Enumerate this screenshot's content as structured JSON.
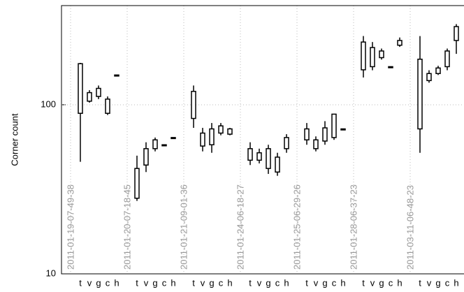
{
  "chart_data": {
    "type": "box",
    "ylabel": "Corner count",
    "log_y": true,
    "grid": true,
    "color": "#000000",
    "ylim": [
      10,
      386
    ],
    "yticks": [
      10,
      100
    ],
    "groups": [
      "2011-01-19-07-49-38",
      "2011-01-20-07-18-45",
      "2011-01-21-09-01-36",
      "2011-01-24-06-18-27",
      "2011-01-25-06-29-26",
      "2011-01-28-06-37-23",
      "2011-03-11-06-48-23"
    ],
    "categories": [
      "t",
      "v",
      "g",
      "c",
      "h",
      "t",
      "v",
      "g",
      "c",
      "h",
      "t",
      "v",
      "g",
      "c",
      "h",
      "t",
      "v",
      "g",
      "c",
      "h",
      "t",
      "v",
      "g",
      "c",
      "h",
      "t",
      "v",
      "g",
      "c",
      "h",
      "t",
      "v",
      "g",
      "c",
      "h"
    ],
    "values": [
      [
        46,
        89,
        175,
        177
      ],
      [
        103,
        105,
        118,
        122
      ],
      [
        108,
        112,
        125,
        130
      ],
      [
        87,
        89,
        108,
        112
      ],
      [
        150,
        150,
        150,
        150
      ],
      [
        27,
        28,
        42,
        50
      ],
      [
        40,
        44,
        55,
        60
      ],
      [
        53,
        55,
        62,
        64
      ],
      [
        58,
        58,
        58,
        58
      ],
      [
        64,
        64,
        64,
        64
      ],
      [
        73,
        83,
        120,
        130
      ],
      [
        53,
        57,
        68,
        73
      ],
      [
        52,
        58,
        72,
        78
      ],
      [
        66,
        68,
        75,
        78
      ],
      [
        66,
        67,
        72,
        73
      ],
      [
        44,
        47,
        55,
        60
      ],
      [
        45,
        47,
        52,
        55
      ],
      [
        39,
        42,
        55,
        58
      ],
      [
        38,
        40,
        49,
        52
      ],
      [
        52,
        55,
        64,
        67
      ],
      [
        58,
        62,
        72,
        78
      ],
      [
        53,
        55,
        62,
        65
      ],
      [
        58,
        61,
        73,
        80
      ],
      [
        62,
        64,
        88,
        88
      ],
      [
        72,
        72,
        72,
        72
      ],
      [
        145,
        161,
        235,
        255
      ],
      [
        160,
        168,
        218,
        235
      ],
      [
        185,
        190,
        208,
        215
      ],
      [
        168,
        168,
        168,
        168
      ],
      [
        220,
        225,
        240,
        250
      ],
      [
        52,
        72,
        186,
        255
      ],
      [
        135,
        139,
        153,
        160
      ],
      [
        150,
        153,
        165,
        170
      ],
      [
        160,
        168,
        208,
        215
      ],
      [
        200,
        240,
        290,
        300
      ]
    ]
  }
}
